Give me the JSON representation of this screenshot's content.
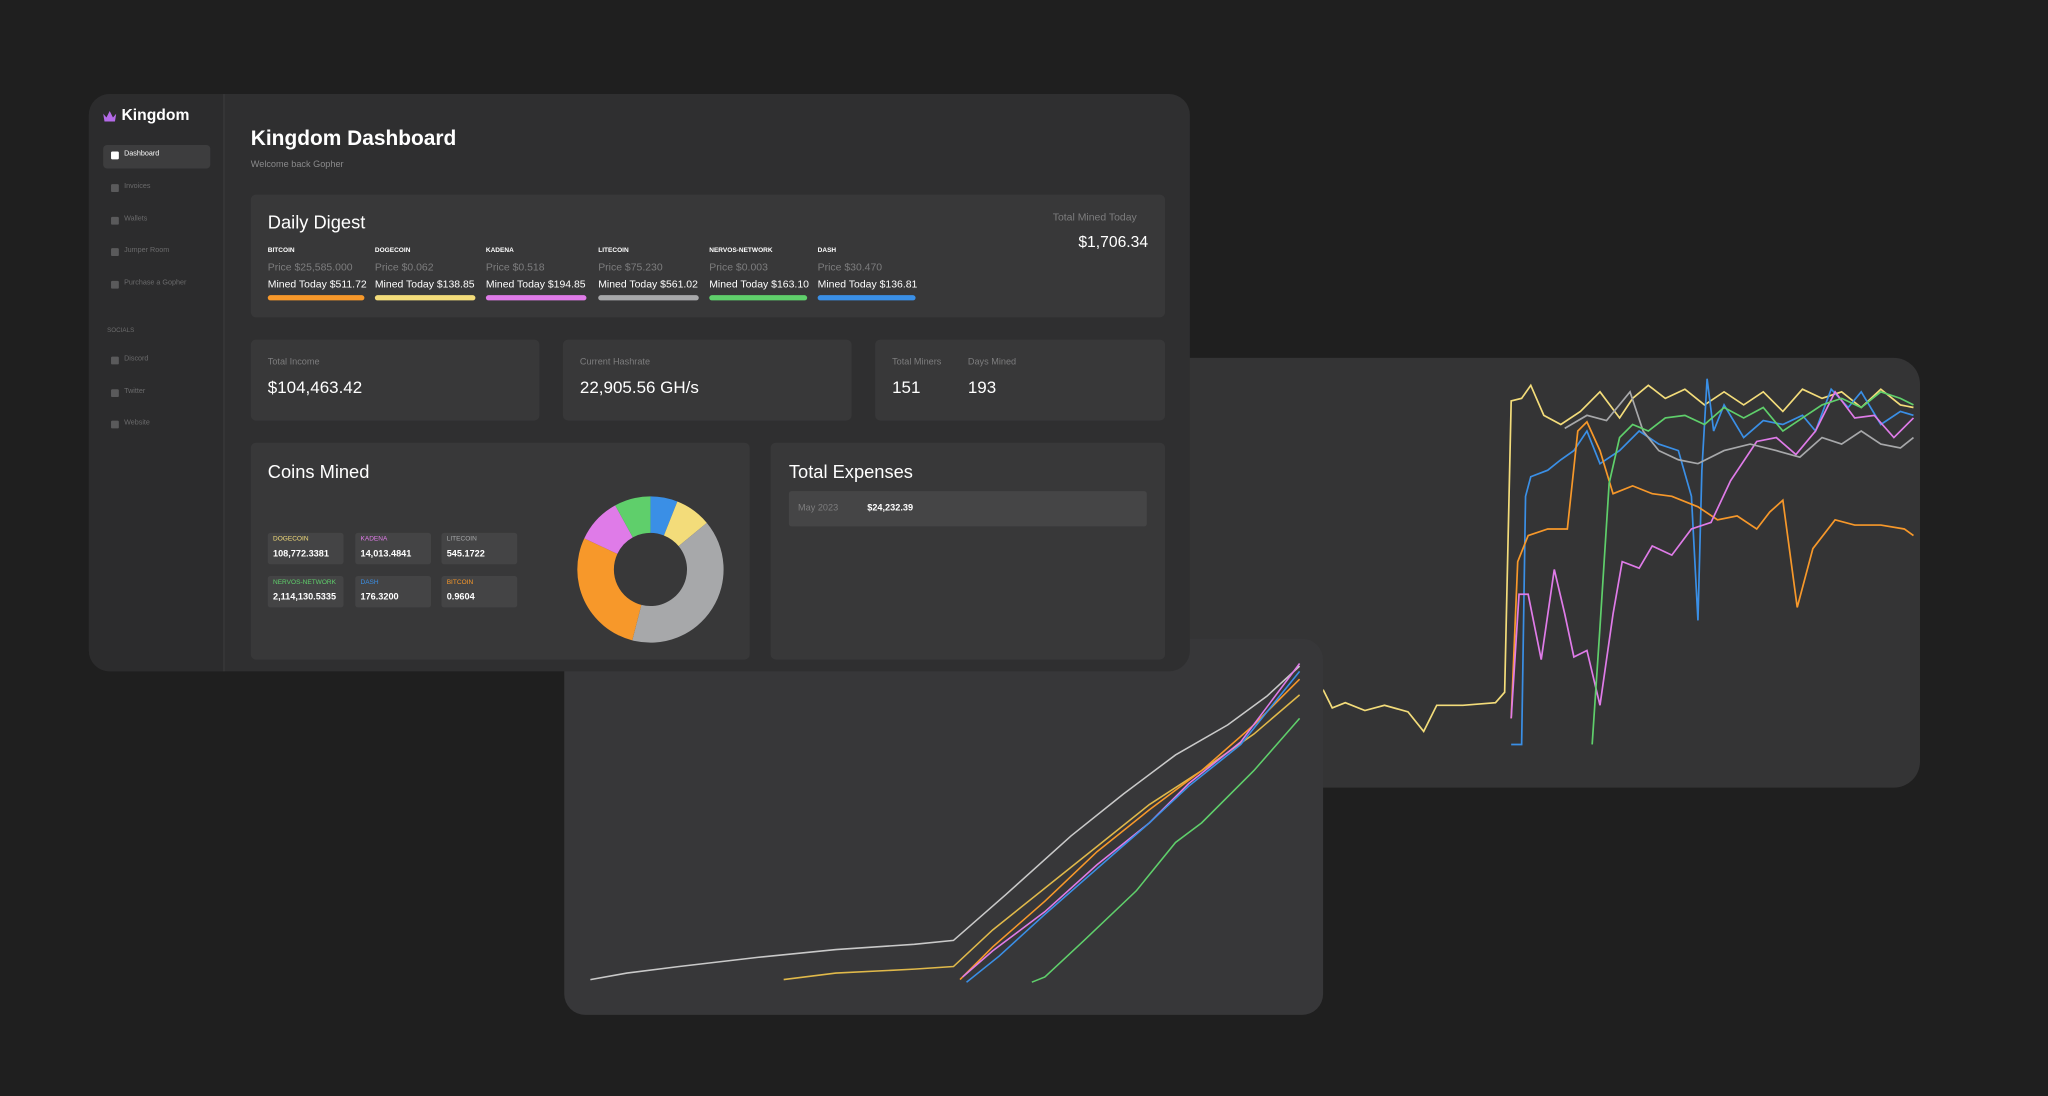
{
  "sidebar": {
    "brand": "Kingdom",
    "nav": [
      "Dashboard",
      "Invoices",
      "Wallets",
      "Jumper Room",
      "Purchase a Gopher"
    ],
    "socials_heading": "SOCIALS",
    "socials": [
      "Discord",
      "Twitter",
      "Website"
    ]
  },
  "header": {
    "title": "Kingdom Dashboard",
    "subtitle": "Welcome back Gopher"
  },
  "daily_digest": {
    "title": "Daily Digest",
    "total_label": "Total Mined Today",
    "total": "$1,706.34",
    "coins": [
      {
        "name": "BITCOIN",
        "price": "Price $25,585.000",
        "mined": "Mined Today $511.72",
        "color": "#f7982a"
      },
      {
        "name": "DOGECOIN",
        "price": "Price $0.062",
        "mined": "Mined Today $138.85",
        "color": "#f3dc7a"
      },
      {
        "name": "KADENA",
        "price": "Price $0.518",
        "mined": "Mined Today $194.85",
        "color": "#df7be8"
      },
      {
        "name": "LITECOIN",
        "price": "Price $75.230",
        "mined": "Mined Today $561.02",
        "color": "#a7a8aa"
      },
      {
        "name": "NERVOS-NETWORK",
        "price": "Price $0.003",
        "mined": "Mined Today $163.10",
        "color": "#5fcf6b"
      },
      {
        "name": "DASH",
        "price": "Price $30.470",
        "mined": "Mined Today $136.81",
        "color": "#3a8fe6"
      }
    ]
  },
  "stats": [
    {
      "label": "Total Income",
      "value": "$104,463.42"
    },
    {
      "label": "Current Hashrate",
      "value": "22,905.56 GH/s"
    },
    {
      "label": "Total Miners",
      "value": "151"
    },
    {
      "label": "Days Mined",
      "value": "193"
    }
  ],
  "coins_mined": {
    "title": "Coins Mined",
    "items": [
      {
        "name": "DOGECOIN",
        "amount": "108,772.3381",
        "color": "#f3dc7a"
      },
      {
        "name": "KADENA",
        "amount": "14,013.4841",
        "color": "#df7be8"
      },
      {
        "name": "LITECOIN",
        "amount": "545.1722",
        "color": "#a7a8aa"
      },
      {
        "name": "NERVOS-NETWORK",
        "amount": "2,114,130.5335",
        "color": "#5fcf6b"
      },
      {
        "name": "DASH",
        "amount": "176.3200",
        "color": "#3a8fe6"
      },
      {
        "name": "BITCOIN",
        "amount": "0.9604",
        "color": "#f7982a"
      }
    ],
    "donut": {
      "values": [
        6,
        8,
        40,
        28,
        10,
        8
      ],
      "colors": [
        "#3a8fe6",
        "#f3dc7a",
        "#a7a8aa",
        "#f7982a",
        "#df7be8",
        "#5fcf6b"
      ]
    }
  },
  "expenses": {
    "title": "Total Expenses",
    "rows": [
      [
        "May 2023",
        "$24,232.39"
      ]
    ]
  }
}
